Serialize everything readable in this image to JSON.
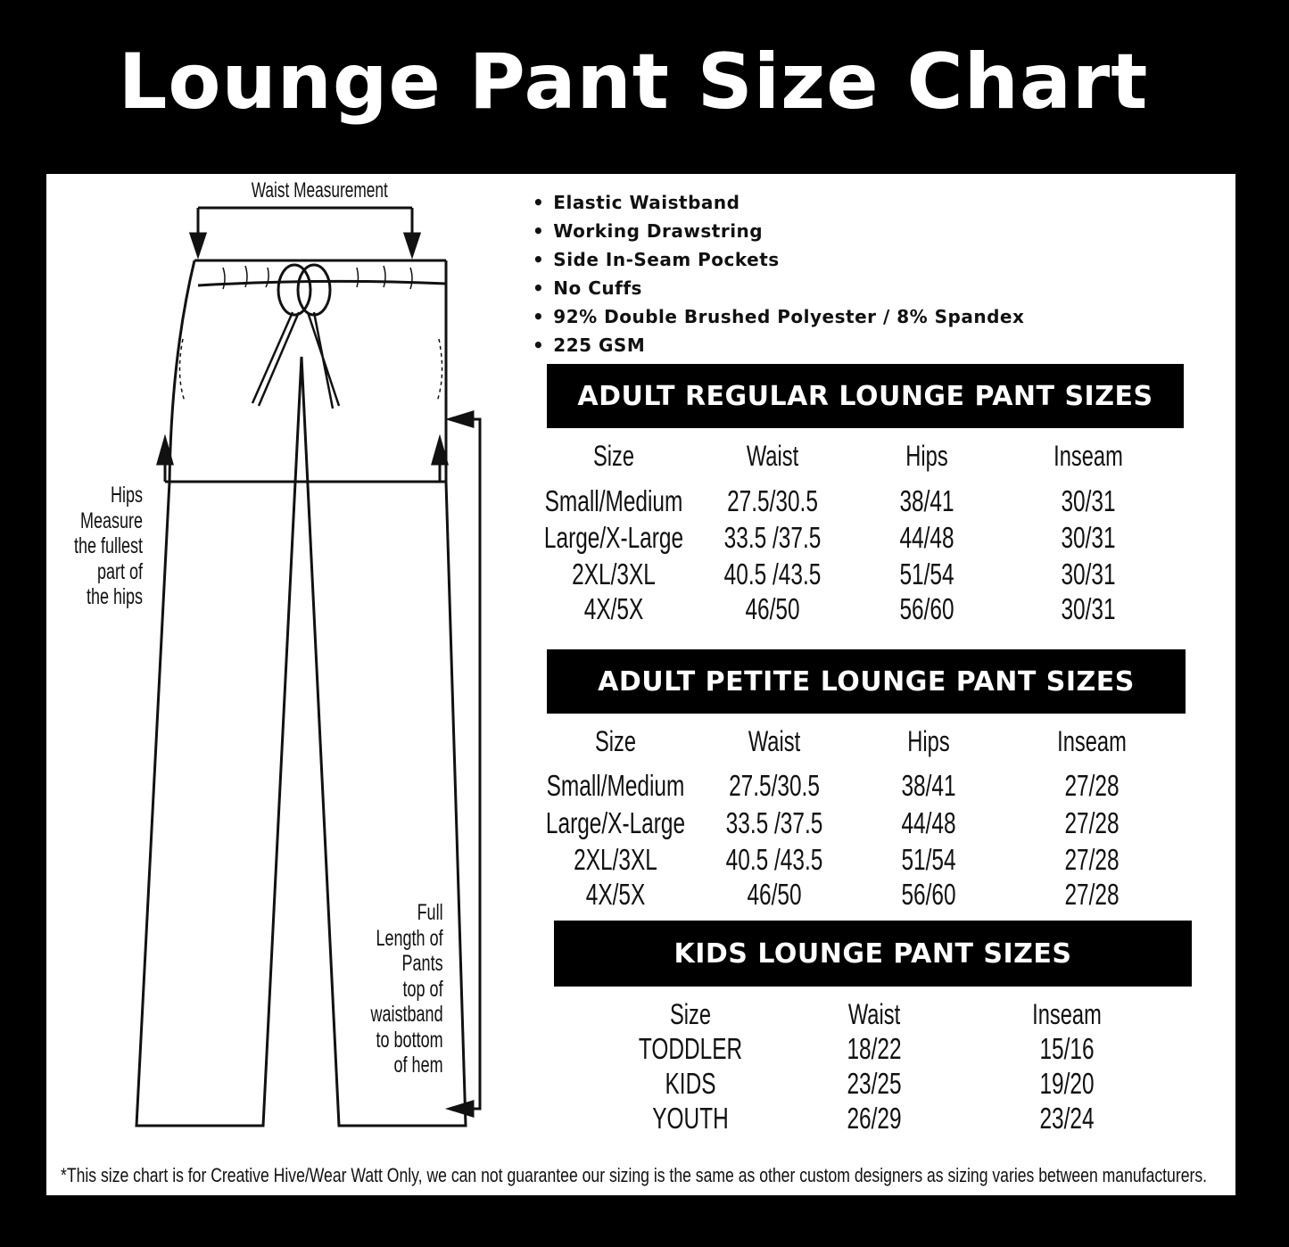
{
  "title": "Lounge Pant Size Chart",
  "diagram": {
    "waist_label": "Waist Measurement",
    "hips_label": [
      "Hips",
      "Measure",
      "the fullest",
      "part of",
      "the hips"
    ],
    "length_label": [
      "Full",
      "Length of",
      "Pants",
      "top of",
      "waistband",
      "to bottom",
      "of hem"
    ]
  },
  "features": [
    "Elastic Waistband",
    "Working Drawstring",
    "Side In-Seam Pockets",
    "No Cuffs",
    "92% Double Brushed Polyester / 8% Spandex",
    "225 GSM"
  ],
  "tables": {
    "regular": {
      "title": "ADULT REGULAR LOUNGE PANT SIZES",
      "columns": [
        "Size",
        "Waist",
        "Hips",
        "Inseam"
      ],
      "rows": [
        [
          "Small/Medium",
          "27.5/30.5",
          "38/41",
          "30/31"
        ],
        [
          "Large/X-Large",
          "33.5 /37.5",
          "44/48",
          "30/31"
        ],
        [
          "2XL/3XL",
          "40.5 /43.5",
          "51/54",
          "30/31"
        ],
        [
          "4X/5X",
          "46/50",
          "56/60",
          "30/31"
        ]
      ]
    },
    "petite": {
      "title": "ADULT PETITE LOUNGE PANT SIZES",
      "columns": [
        "Size",
        "Waist",
        "Hips",
        "Inseam"
      ],
      "rows": [
        [
          "Small/Medium",
          "27.5/30.5",
          "38/41",
          "27/28"
        ],
        [
          "Large/X-Large",
          "33.5 /37.5",
          "44/48",
          "27/28"
        ],
        [
          "2XL/3XL",
          "40.5 /43.5",
          "51/54",
          "27/28"
        ],
        [
          "4X/5X",
          "46/50",
          "56/60",
          "27/28"
        ]
      ]
    },
    "kids": {
      "title": "KIDS LOUNGE PANT SIZES",
      "columns": [
        "Size",
        "Waist",
        "Inseam"
      ],
      "rows": [
        [
          "TODDLER",
          "18/22",
          "15/16"
        ],
        [
          "KIDS",
          "23/25",
          "19/20"
        ],
        [
          "YOUTH",
          "26/29",
          "23/24"
        ]
      ]
    }
  },
  "footnote": "*This size chart is for Creative Hive/Wear Watt Only, we can not guarantee our sizing is the same as other custom designers as sizing varies  between manufacturers."
}
